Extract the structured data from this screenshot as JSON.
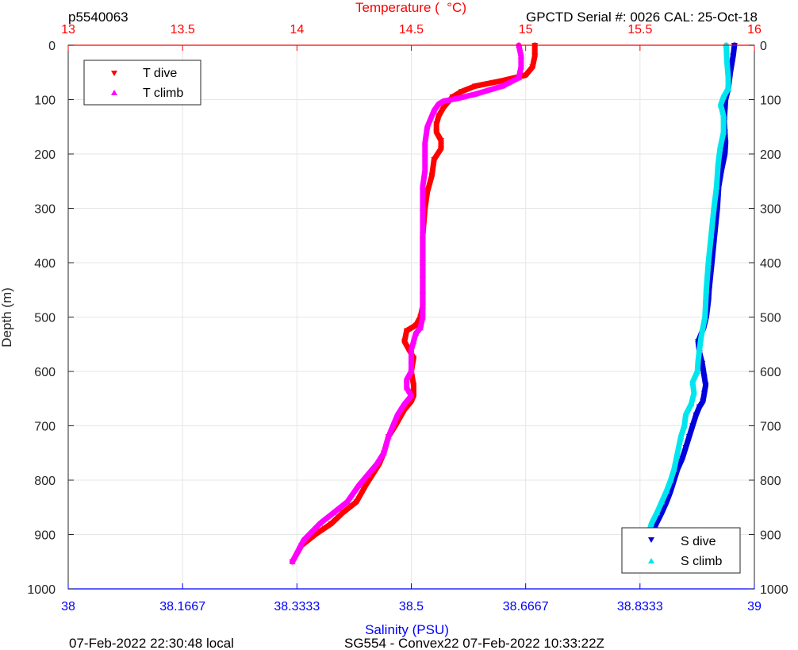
{
  "header": {
    "dive_id": "p5540063",
    "calibration": "GPCTD Serial #: 0026 CAL: 25-Oct-18"
  },
  "footer": {
    "local_time": "07-Feb-2022 22:30:48 local",
    "mission": "SG554 - Convex22 07-Feb-2022 10:33:22Z"
  },
  "colors": {
    "t_dive": "#ff0000",
    "t_climb": "#ff00ff",
    "s_dive": "#0000dd",
    "s_climb": "#00e5ee",
    "temp_axis": "#ff0000",
    "sal_axis": "#0000ff",
    "grid": "#e6e6e6"
  },
  "chart_data": {
    "type": "scatter",
    "ylabel": "Depth (m)",
    "ylim": [
      0,
      1000
    ],
    "y_reversed": true,
    "yticks": [
      0,
      100,
      200,
      300,
      400,
      500,
      600,
      700,
      800,
      900,
      1000
    ],
    "temperature_axis": {
      "label": "Temperature (  °C)",
      "position": "top",
      "lim": [
        13,
        16
      ],
      "ticks": [
        13,
        13.5,
        14,
        14.5,
        15,
        15.5,
        16
      ],
      "tick_labels": [
        "13",
        "13.5",
        "14",
        "14.5",
        "15",
        "15.5",
        "16"
      ]
    },
    "salinity_axis": {
      "label": "Salinity (PSU)",
      "position": "bottom",
      "lim": [
        38,
        39
      ],
      "ticks": [
        38,
        38.1667,
        38.3333,
        38.5,
        38.6667,
        38.8333,
        39
      ],
      "tick_labels": [
        "38",
        "38.1667",
        "38.3333",
        "38.5",
        "38.6667",
        "38.8333",
        "39"
      ]
    },
    "grid": true,
    "legends": [
      {
        "placement": "top-left",
        "entries": [
          "T dive",
          "T climb"
        ]
      },
      {
        "placement": "bottom-right",
        "entries": [
          "S dive",
          "S climb"
        ]
      }
    ],
    "series": [
      {
        "name": "T dive",
        "axis": "temperature",
        "marker": "triangle-down",
        "x": [
          15.04,
          15.04,
          15.03,
          15.0,
          14.9,
          14.78,
          14.72,
          14.68,
          14.66,
          14.64,
          14.62,
          14.61,
          14.61,
          14.63,
          14.63,
          14.6,
          14.59,
          14.57,
          14.56,
          14.55,
          14.55,
          14.55,
          14.55,
          14.55,
          14.54,
          14.52,
          14.48,
          14.47,
          14.49,
          14.51,
          14.5,
          14.51,
          14.51,
          14.5,
          14.47,
          14.43,
          14.4,
          14.38,
          14.36,
          14.33,
          14.3,
          14.26,
          14.2,
          14.15,
          14.08,
          14.02,
          13.98
        ],
        "y": [
          0,
          20,
          40,
          55,
          65,
          75,
          85,
          95,
          105,
          115,
          130,
          145,
          160,
          175,
          190,
          210,
          240,
          270,
          300,
          350,
          400,
          430,
          460,
          480,
          500,
          515,
          525,
          545,
          560,
          575,
          600,
          625,
          645,
          655,
          670,
          700,
          720,
          750,
          770,
          790,
          810,
          840,
          860,
          880,
          900,
          920,
          950
        ]
      },
      {
        "name": "T climb",
        "axis": "temperature",
        "marker": "triangle-up",
        "x": [
          14.97,
          14.98,
          14.98,
          14.97,
          14.9,
          14.78,
          14.7,
          14.64,
          14.62,
          14.6,
          14.57,
          14.56,
          14.56,
          14.56,
          14.55,
          14.55,
          14.55,
          14.55,
          14.55,
          14.55,
          14.55,
          14.54,
          14.52,
          14.51,
          14.5,
          14.5,
          14.5,
          14.48,
          14.48,
          14.5,
          14.47,
          14.44,
          14.42,
          14.4,
          14.38,
          14.35,
          14.31,
          14.27,
          14.22,
          14.16,
          14.1,
          14.03,
          13.98
        ],
        "y": [
          0,
          20,
          40,
          60,
          75,
          90,
          98,
          103,
          108,
          120,
          150,
          180,
          200,
          230,
          260,
          300,
          350,
          400,
          450,
          480,
          500,
          520,
          530,
          545,
          560,
          580,
          600,
          615,
          630,
          645,
          660,
          680,
          700,
          720,
          750,
          770,
          790,
          810,
          840,
          860,
          880,
          910,
          950
        ]
      },
      {
        "name": "S dive",
        "axis": "salinity",
        "marker": "triangle-down",
        "x": [
          38.971,
          38.969,
          38.965,
          38.962,
          38.958,
          38.957,
          38.956,
          38.957,
          38.958,
          38.957,
          38.952,
          38.948,
          38.946,
          38.942,
          38.938,
          38.934,
          38.933,
          38.93,
          38.926,
          38.918,
          38.92,
          38.924,
          38.927,
          38.929,
          38.927,
          38.925,
          38.92,
          38.915,
          38.91,
          38.905,
          38.9,
          38.895,
          38.888,
          38.883,
          38.878,
          38.872,
          38.865,
          38.857,
          38.85,
          38.845,
          38.84
        ],
        "y": [
          0,
          20,
          50,
          80,
          100,
          120,
          140,
          160,
          180,
          200,
          230,
          260,
          300,
          350,
          400,
          450,
          470,
          500,
          520,
          545,
          565,
          585,
          610,
          625,
          640,
          655,
          665,
          680,
          700,
          720,
          740,
          760,
          780,
          800,
          820,
          840,
          860,
          880,
          900,
          920,
          950
        ]
      },
      {
        "name": "S climb",
        "axis": "salinity",
        "marker": "triangle-up",
        "x": [
          38.959,
          38.96,
          38.962,
          38.962,
          38.955,
          38.951,
          38.955,
          38.955,
          38.95,
          38.947,
          38.945,
          38.941,
          38.937,
          38.933,
          38.93,
          38.928,
          38.922,
          38.92,
          38.918,
          38.917,
          38.91,
          38.912,
          38.908,
          38.9,
          38.898,
          38.893,
          38.888,
          38.883,
          38.878,
          38.872,
          38.865,
          38.858,
          38.85,
          38.843,
          38.84
        ],
        "y": [
          0,
          30,
          60,
          80,
          95,
          110,
          130,
          160,
          190,
          220,
          260,
          300,
          350,
          400,
          450,
          500,
          540,
          560,
          580,
          600,
          620,
          640,
          660,
          680,
          700,
          720,
          750,
          780,
          800,
          820,
          840,
          860,
          880,
          910,
          950
        ]
      }
    ]
  }
}
